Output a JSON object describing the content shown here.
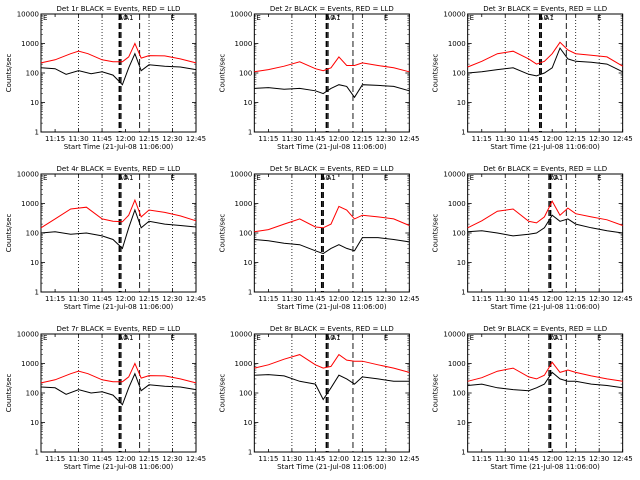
{
  "style": {
    "events_color": "#000000",
    "lld_color": "#ff0000",
    "background": "#ffffff"
  },
  "common": {
    "xlabel": "Start Time (21-Jul-08 11:06:00)",
    "ylabel": "Counts/sec",
    "x_ticks": [
      "11:15",
      "11:30",
      "11:45",
      "12:00",
      "12:15",
      "12:30",
      "12:45"
    ],
    "y_ticks": [
      "1",
      "10",
      "100",
      "1000",
      "10000"
    ],
    "dotted_lines": [
      "11:30",
      "11:45",
      "12:15",
      "12:30"
    ],
    "attenuator_markers": [
      "A0",
      "A1"
    ],
    "markers": [
      "E"
    ]
  },
  "chart_data": [
    {
      "type": "line",
      "title": "Det 1r BLACK = Events, RED = LLD",
      "ylim": [
        1,
        10000
      ],
      "xlim": [
        "11:06",
        "12:45"
      ],
      "dashed_lines": [
        "11:56",
        "11:57",
        "12:09"
      ],
      "series": [
        {
          "name": "Events",
          "color": "#000000",
          "x": [
            "11:06",
            "11:15",
            "11:22",
            "11:30",
            "11:38",
            "11:45",
            "11:52",
            "11:58",
            "12:02",
            "12:06",
            "12:10",
            "12:15",
            "12:25",
            "12:35",
            "12:45"
          ],
          "y": [
            150,
            140,
            90,
            120,
            95,
            110,
            85,
            40,
            150,
            450,
            120,
            190,
            170,
            160,
            130
          ]
        },
        {
          "name": "LLD",
          "color": "#ff0000",
          "x": [
            "11:06",
            "11:15",
            "11:25",
            "11:30",
            "11:36",
            "11:45",
            "11:52",
            "11:58",
            "12:02",
            "12:06",
            "12:10",
            "12:15",
            "12:25",
            "12:35",
            "12:45"
          ],
          "y": [
            220,
            280,
            450,
            550,
            450,
            280,
            240,
            240,
            350,
            1000,
            320,
            390,
            380,
            300,
            220
          ]
        }
      ]
    },
    {
      "type": "line",
      "title": "Det 2r BLACK = Events, RED = LLD",
      "ylim": [
        1,
        10000
      ],
      "xlim": [
        "11:06",
        "12:45"
      ],
      "dashed_lines": [
        "11:52",
        "11:53",
        "12:09"
      ],
      "series": [
        {
          "name": "Events",
          "color": "#000000",
          "x": [
            "11:06",
            "11:15",
            "11:25",
            "11:35",
            "11:45",
            "11:50",
            "11:55",
            "12:00",
            "12:05",
            "12:10",
            "12:15",
            "12:25",
            "12:35",
            "12:45"
          ],
          "y": [
            30,
            32,
            28,
            30,
            25,
            20,
            30,
            40,
            35,
            15,
            40,
            38,
            35,
            25
          ]
        },
        {
          "name": "LLD",
          "color": "#ff0000",
          "x": [
            "11:06",
            "11:15",
            "11:25",
            "11:35",
            "11:45",
            "11:50",
            "11:55",
            "12:00",
            "12:05",
            "12:10",
            "12:15",
            "12:25",
            "12:35",
            "12:45"
          ],
          "y": [
            110,
            130,
            170,
            240,
            140,
            120,
            150,
            350,
            180,
            180,
            220,
            180,
            150,
            110
          ]
        }
      ]
    },
    {
      "type": "line",
      "title": "Det 3r BLACK = Events, RED = LLD",
      "ylim": [
        1,
        10000
      ],
      "xlim": [
        "11:06",
        "12:45"
      ],
      "dashed_lines": [
        "11:52",
        "11:53",
        "12:09"
      ],
      "series": [
        {
          "name": "Events",
          "color": "#000000",
          "x": [
            "11:06",
            "11:15",
            "11:25",
            "11:35",
            "11:45",
            "11:50",
            "11:55",
            "12:00",
            "12:05",
            "12:10",
            "12:15",
            "12:25",
            "12:35",
            "12:45"
          ],
          "y": [
            100,
            110,
            130,
            150,
            90,
            80,
            100,
            150,
            700,
            300,
            250,
            230,
            200,
            110
          ]
        },
        {
          "name": "LLD",
          "color": "#ff0000",
          "x": [
            "11:06",
            "11:15",
            "11:25",
            "11:35",
            "11:45",
            "11:50",
            "11:55",
            "12:00",
            "12:05",
            "12:10",
            "12:15",
            "12:25",
            "12:35",
            "12:45"
          ],
          "y": [
            160,
            250,
            450,
            550,
            300,
            200,
            250,
            450,
            1100,
            600,
            450,
            400,
            350,
            170
          ]
        }
      ]
    },
    {
      "type": "line",
      "title": "Det 4r BLACK = Events, RED = LLD",
      "ylim": [
        1,
        10000
      ],
      "xlim": [
        "11:06",
        "12:45"
      ],
      "dashed_lines": [
        "11:56",
        "11:57",
        "12:09"
      ],
      "series": [
        {
          "name": "Events",
          "color": "#000000",
          "x": [
            "11:06",
            "11:15",
            "11:25",
            "11:35",
            "11:45",
            "11:52",
            "11:58",
            "12:02",
            "12:06",
            "12:10",
            "12:15",
            "12:25",
            "12:35",
            "12:45"
          ],
          "y": [
            100,
            110,
            90,
            100,
            80,
            60,
            30,
            150,
            600,
            150,
            250,
            200,
            180,
            160
          ]
        },
        {
          "name": "LLD",
          "color": "#ff0000",
          "x": [
            "11:06",
            "11:15",
            "11:25",
            "11:35",
            "11:45",
            "11:52",
            "11:58",
            "12:02",
            "12:06",
            "12:10",
            "12:15",
            "12:25",
            "12:35",
            "12:45"
          ],
          "y": [
            150,
            300,
            650,
            750,
            300,
            250,
            240,
            400,
            1300,
            350,
            600,
            500,
            380,
            260
          ]
        }
      ]
    },
    {
      "type": "line",
      "title": "Det 5r BLACK = Events, RED = LLD",
      "ylim": [
        1,
        10000
      ],
      "xlim": [
        "11:06",
        "12:45"
      ],
      "dashed_lines": [
        "11:49",
        "11:50",
        "12:09"
      ],
      "series": [
        {
          "name": "Events",
          "color": "#000000",
          "x": [
            "11:06",
            "11:15",
            "11:25",
            "11:35",
            "11:45",
            "11:50",
            "11:55",
            "12:00",
            "12:05",
            "12:10",
            "12:15",
            "12:25",
            "12:35",
            "12:45"
          ],
          "y": [
            60,
            55,
            45,
            40,
            25,
            20,
            30,
            40,
            30,
            25,
            70,
            70,
            60,
            50
          ]
        },
        {
          "name": "LLD",
          "color": "#ff0000",
          "x": [
            "11:06",
            "11:15",
            "11:25",
            "11:35",
            "11:45",
            "11:50",
            "11:55",
            "12:00",
            "12:05",
            "12:10",
            "12:15",
            "12:25",
            "12:35",
            "12:45"
          ],
          "y": [
            110,
            130,
            200,
            300,
            160,
            150,
            200,
            800,
            600,
            300,
            400,
            350,
            300,
            180
          ]
        }
      ]
    },
    {
      "type": "line",
      "title": "Det 6r BLACK = Events, RED = LLD",
      "ylim": [
        1,
        10000
      ],
      "xlim": [
        "11:06",
        "12:45"
      ],
      "dashed_lines": [
        "11:58",
        "11:59",
        "12:09"
      ],
      "series": [
        {
          "name": "Events",
          "color": "#000000",
          "x": [
            "11:06",
            "11:15",
            "11:25",
            "11:35",
            "11:45",
            "11:50",
            "11:55",
            "12:00",
            "12:05",
            "12:10",
            "12:15",
            "12:25",
            "12:35",
            "12:45"
          ],
          "y": [
            110,
            120,
            100,
            80,
            90,
            100,
            150,
            400,
            250,
            300,
            200,
            150,
            120,
            100
          ]
        },
        {
          "name": "LLD",
          "color": "#ff0000",
          "x": [
            "11:06",
            "11:15",
            "11:25",
            "11:35",
            "11:45",
            "11:50",
            "11:55",
            "12:00",
            "12:05",
            "12:10",
            "12:15",
            "12:25",
            "12:35",
            "12:45"
          ],
          "y": [
            150,
            260,
            550,
            650,
            250,
            220,
            350,
            1200,
            400,
            700,
            450,
            350,
            280,
            180
          ]
        }
      ]
    },
    {
      "type": "line",
      "title": "Det 7r BLACK = Events, RED = LLD",
      "ylim": [
        1,
        10000
      ],
      "xlim": [
        "11:06",
        "12:45"
      ],
      "dashed_lines": [
        "11:56",
        "11:57",
        "12:09"
      ],
      "series": [
        {
          "name": "Events",
          "color": "#000000",
          "x": [
            "11:06",
            "11:15",
            "11:22",
            "11:30",
            "11:38",
            "11:45",
            "11:52",
            "11:58",
            "12:02",
            "12:06",
            "12:10",
            "12:15",
            "12:25",
            "12:35",
            "12:45"
          ],
          "y": [
            160,
            150,
            90,
            130,
            100,
            110,
            85,
            40,
            150,
            450,
            120,
            190,
            170,
            160,
            130
          ]
        },
        {
          "name": "LLD",
          "color": "#ff0000",
          "x": [
            "11:06",
            "11:15",
            "11:25",
            "11:30",
            "11:36",
            "11:45",
            "11:52",
            "11:58",
            "12:02",
            "12:06",
            "12:10",
            "12:15",
            "12:25",
            "12:35",
            "12:45"
          ],
          "y": [
            220,
            280,
            450,
            550,
            450,
            280,
            240,
            240,
            350,
            1000,
            320,
            390,
            380,
            300,
            220
          ]
        }
      ]
    },
    {
      "type": "line",
      "title": "Det 8r BLACK = Events, RED = LLD",
      "ylim": [
        1,
        10000
      ],
      "xlim": [
        "11:06",
        "12:45"
      ],
      "dashed_lines": [
        "11:52",
        "11:53",
        "12:09"
      ],
      "series": [
        {
          "name": "Events",
          "color": "#000000",
          "x": [
            "11:06",
            "11:15",
            "11:25",
            "11:35",
            "11:45",
            "11:50",
            "11:55",
            "12:00",
            "12:05",
            "12:10",
            "12:15",
            "12:25",
            "12:35",
            "12:45"
          ],
          "y": [
            400,
            420,
            380,
            250,
            200,
            60,
            150,
            400,
            300,
            200,
            350,
            300,
            250,
            250
          ]
        },
        {
          "name": "LLD",
          "color": "#ff0000",
          "x": [
            "11:06",
            "11:15",
            "11:25",
            "11:35",
            "11:45",
            "11:50",
            "11:55",
            "12:00",
            "12:05",
            "12:10",
            "12:15",
            "12:25",
            "12:35",
            "12:45"
          ],
          "y": [
            700,
            900,
            1400,
            2000,
            900,
            700,
            800,
            2000,
            1300,
            1200,
            1200,
            900,
            700,
            500
          ]
        }
      ]
    },
    {
      "type": "line",
      "title": "Det 9r BLACK = Events, RED = LLD",
      "ylim": [
        1,
        10000
      ],
      "xlim": [
        "11:06",
        "12:45"
      ],
      "dashed_lines": [
        "11:58",
        "11:59",
        "12:09"
      ],
      "series": [
        {
          "name": "Events",
          "color": "#000000",
          "x": [
            "11:06",
            "11:15",
            "11:25",
            "11:35",
            "11:45",
            "11:50",
            "11:55",
            "12:00",
            "12:05",
            "12:10",
            "12:15",
            "12:25",
            "12:35",
            "12:45"
          ],
          "y": [
            180,
            200,
            150,
            130,
            120,
            150,
            200,
            500,
            300,
            250,
            250,
            200,
            180,
            150
          ]
        },
        {
          "name": "LLD",
          "color": "#ff0000",
          "x": [
            "11:06",
            "11:15",
            "11:25",
            "11:35",
            "11:45",
            "11:50",
            "11:55",
            "12:00",
            "12:05",
            "12:10",
            "12:15",
            "12:25",
            "12:35",
            "12:45"
          ],
          "y": [
            250,
            330,
            550,
            700,
            350,
            300,
            400,
            1100,
            500,
            600,
            500,
            380,
            300,
            250
          ]
        }
      ]
    }
  ]
}
